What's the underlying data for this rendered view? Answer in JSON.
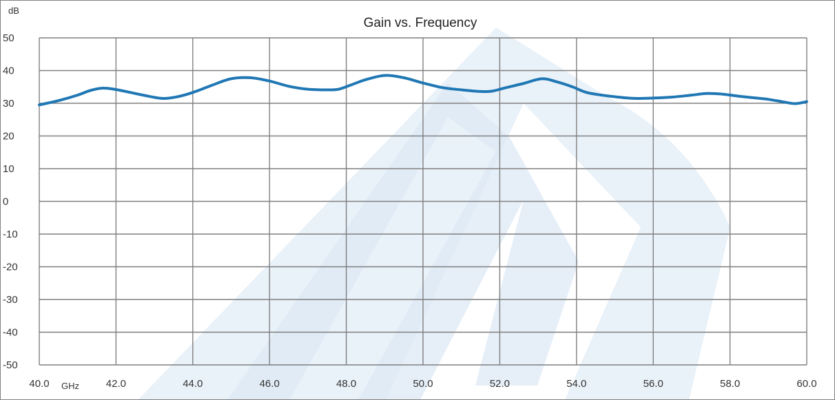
{
  "chart_data": {
    "type": "line",
    "title": "Gain vs. Frequency",
    "y_unit_label": "dB",
    "x_unit_label": "GHz",
    "xlim": [
      40,
      60
    ],
    "ylim": [
      -50,
      50
    ],
    "x_ticks": [
      40,
      42,
      44,
      46,
      48,
      50,
      52,
      54,
      56,
      58,
      60
    ],
    "x_tick_labels": [
      "40.0",
      "42.0",
      "44.0",
      "46.0",
      "48.0",
      "50.0",
      "52.0",
      "54.0",
      "56.0",
      "58.0",
      "60.0"
    ],
    "y_ticks": [
      50,
      40,
      30,
      20,
      10,
      0,
      -10,
      -20,
      -30,
      -40,
      -50
    ],
    "y_tick_labels": [
      "50",
      "40",
      "30",
      "20",
      "10",
      "0",
      "-10",
      "-20",
      "-30",
      "-40",
      "-50"
    ],
    "grid": true,
    "legend": "none",
    "series": [
      {
        "color": "#1f77b4",
        "x": [
          40.0,
          40.5,
          41.0,
          41.3,
          41.6,
          41.9,
          42.3,
          42.7,
          43.2,
          43.6,
          44.0,
          44.5,
          45.0,
          45.5,
          46.0,
          46.5,
          47.0,
          47.5,
          47.8,
          48.1,
          48.5,
          49.0,
          49.5,
          50.0,
          50.5,
          51.0,
          51.5,
          51.8,
          52.1,
          52.6,
          53.1,
          53.5,
          53.9,
          54.3,
          55.0,
          55.5,
          56.0,
          56.5,
          57.0,
          57.4,
          57.8,
          58.2,
          58.6,
          59.0,
          59.4,
          59.7,
          60.0
        ],
        "y": [
          29.5,
          30.8,
          32.5,
          33.8,
          34.6,
          34.4,
          33.5,
          32.5,
          31.5,
          32.0,
          33.3,
          35.5,
          37.5,
          37.8,
          36.8,
          35.2,
          34.3,
          34.1,
          34.3,
          35.5,
          37.2,
          38.5,
          37.8,
          36.2,
          34.8,
          34.1,
          33.6,
          33.7,
          34.6,
          36.0,
          37.5,
          36.5,
          35.0,
          33.2,
          32.0,
          31.5,
          31.6,
          31.9,
          32.5,
          33.0,
          32.8,
          32.2,
          31.7,
          31.2,
          30.4,
          29.9,
          30.5
        ]
      }
    ]
  },
  "colors": {
    "line": "#1f77b4",
    "grid": "#7f7f7f",
    "border": "#7f7f7f",
    "watermark": "#e4edf7"
  }
}
